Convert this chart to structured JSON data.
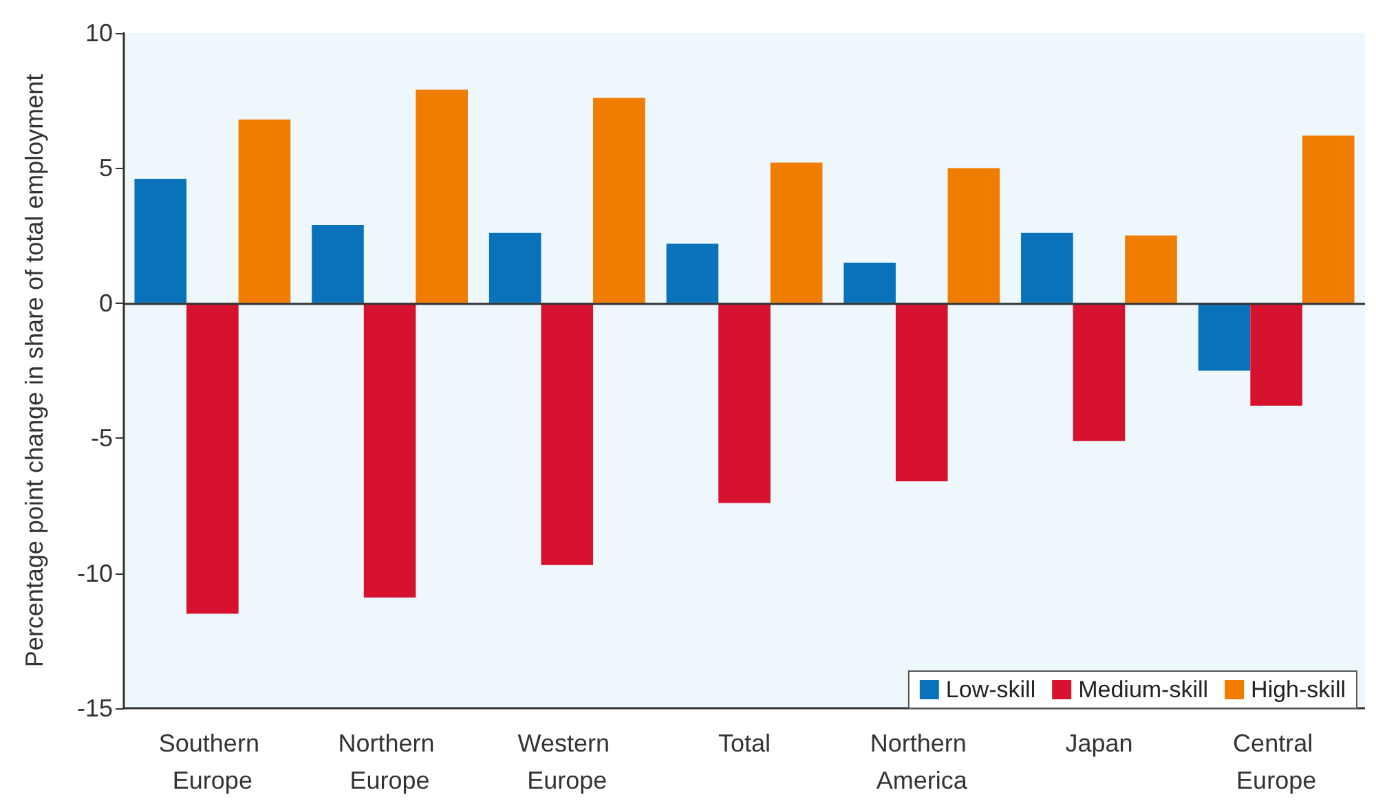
{
  "chart_data": {
    "type": "bar",
    "ylabel": "Percentage point change in share of total employment",
    "categories": [
      "Southern Europe",
      "Northern Europe",
      "Western Europe",
      "Total",
      "Northern America",
      "Japan",
      "Central Europe"
    ],
    "series": [
      {
        "name": "Low-skill",
        "color": "#0a72ba",
        "values": [
          4.6,
          2.9,
          2.6,
          2.2,
          1.5,
          2.6,
          -2.5
        ]
      },
      {
        "name": "Medium-skill",
        "color": "#d7122e",
        "values": [
          -11.5,
          -10.9,
          -9.7,
          -7.4,
          -6.6,
          -5.1,
          -3.8
        ]
      },
      {
        "name": "High-skill",
        "color": "#f07d00",
        "values": [
          6.8,
          7.9,
          7.6,
          5.2,
          5.0,
          2.5,
          6.2
        ]
      }
    ],
    "ylim": [
      -15,
      10
    ],
    "yticks": [
      -15,
      -10,
      -5,
      0,
      5,
      10
    ],
    "grid": false,
    "legend": "bottom right",
    "ref_lines": [
      {
        "axis": "y",
        "value": 0
      }
    ]
  }
}
